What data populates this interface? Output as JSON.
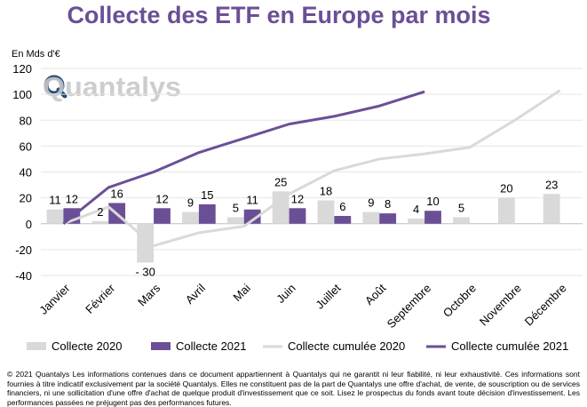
{
  "logo_text": "Quantalys",
  "chart_data": {
    "type": "bar",
    "title": "Collecte des ETF en Europe par mois",
    "ylabel": "En Mds d'€",
    "ylim": [
      -40,
      120
    ],
    "yticks": [
      -40,
      -20,
      0,
      20,
      40,
      60,
      80,
      100,
      120
    ],
    "categories": [
      "Janvier",
      "Février",
      "Mars",
      "Avril",
      "Mai",
      "Juin",
      "Juillet",
      "Août",
      "Septembre",
      "Octobre",
      "Novembre",
      "Décembre"
    ],
    "series": [
      {
        "name": "Collecte 2020",
        "kind": "bar",
        "color": "#d9d9d9",
        "values": [
          11,
          2,
          -30,
          9,
          5,
          25,
          18,
          9,
          4,
          5,
          20,
          23
        ],
        "labels": [
          "11",
          "2",
          "- 30",
          "9",
          "5",
          "25",
          "18",
          "9",
          "4",
          "5",
          "20",
          "23"
        ]
      },
      {
        "name": "Collecte 2021",
        "kind": "bar",
        "color": "#6b4f96",
        "values": [
          12,
          16,
          12,
          15,
          11,
          12,
          6,
          8,
          10,
          null,
          null,
          null
        ],
        "labels": [
          "12",
          "16",
          "12",
          "15",
          "11",
          "12",
          "6",
          "8",
          "10",
          "",
          "",
          ""
        ]
      },
      {
        "name": "Collecte cumulée 2020",
        "kind": "line",
        "color": "#d9d9d9",
        "values": [
          0,
          13,
          -17,
          -7,
          -2,
          23,
          41,
          50,
          54,
          59,
          80,
          103
        ]
      },
      {
        "name": "Collecte cumulée 2021",
        "kind": "line",
        "color": "#6b4f96",
        "values": [
          0,
          28,
          40,
          55,
          66,
          77,
          83,
          91,
          102,
          null,
          null,
          null
        ]
      }
    ],
    "grid": true,
    "legend_position": "bottom",
    "title_color": "#6b4f96"
  },
  "footer": "© 2021 Quantalys Les informations contenues dans ce document appartiennent à Quantalys qui ne garantit ni leur fiabilité, ni leur exhaustivité. Ces informations sont fournies à titre indicatif exclusivement par la société Quantalys. Elles ne constituent pas de la part de Quantalys une offre d'achat, de vente, de souscription ou de services financiers, ni une sollicitation d'une offre d'achat de quelque produit d'investissement que ce soit. Lisez le prospectus du fonds avant toute décision d'investissement. Les performances passées ne préjugent pas des performances futures."
}
